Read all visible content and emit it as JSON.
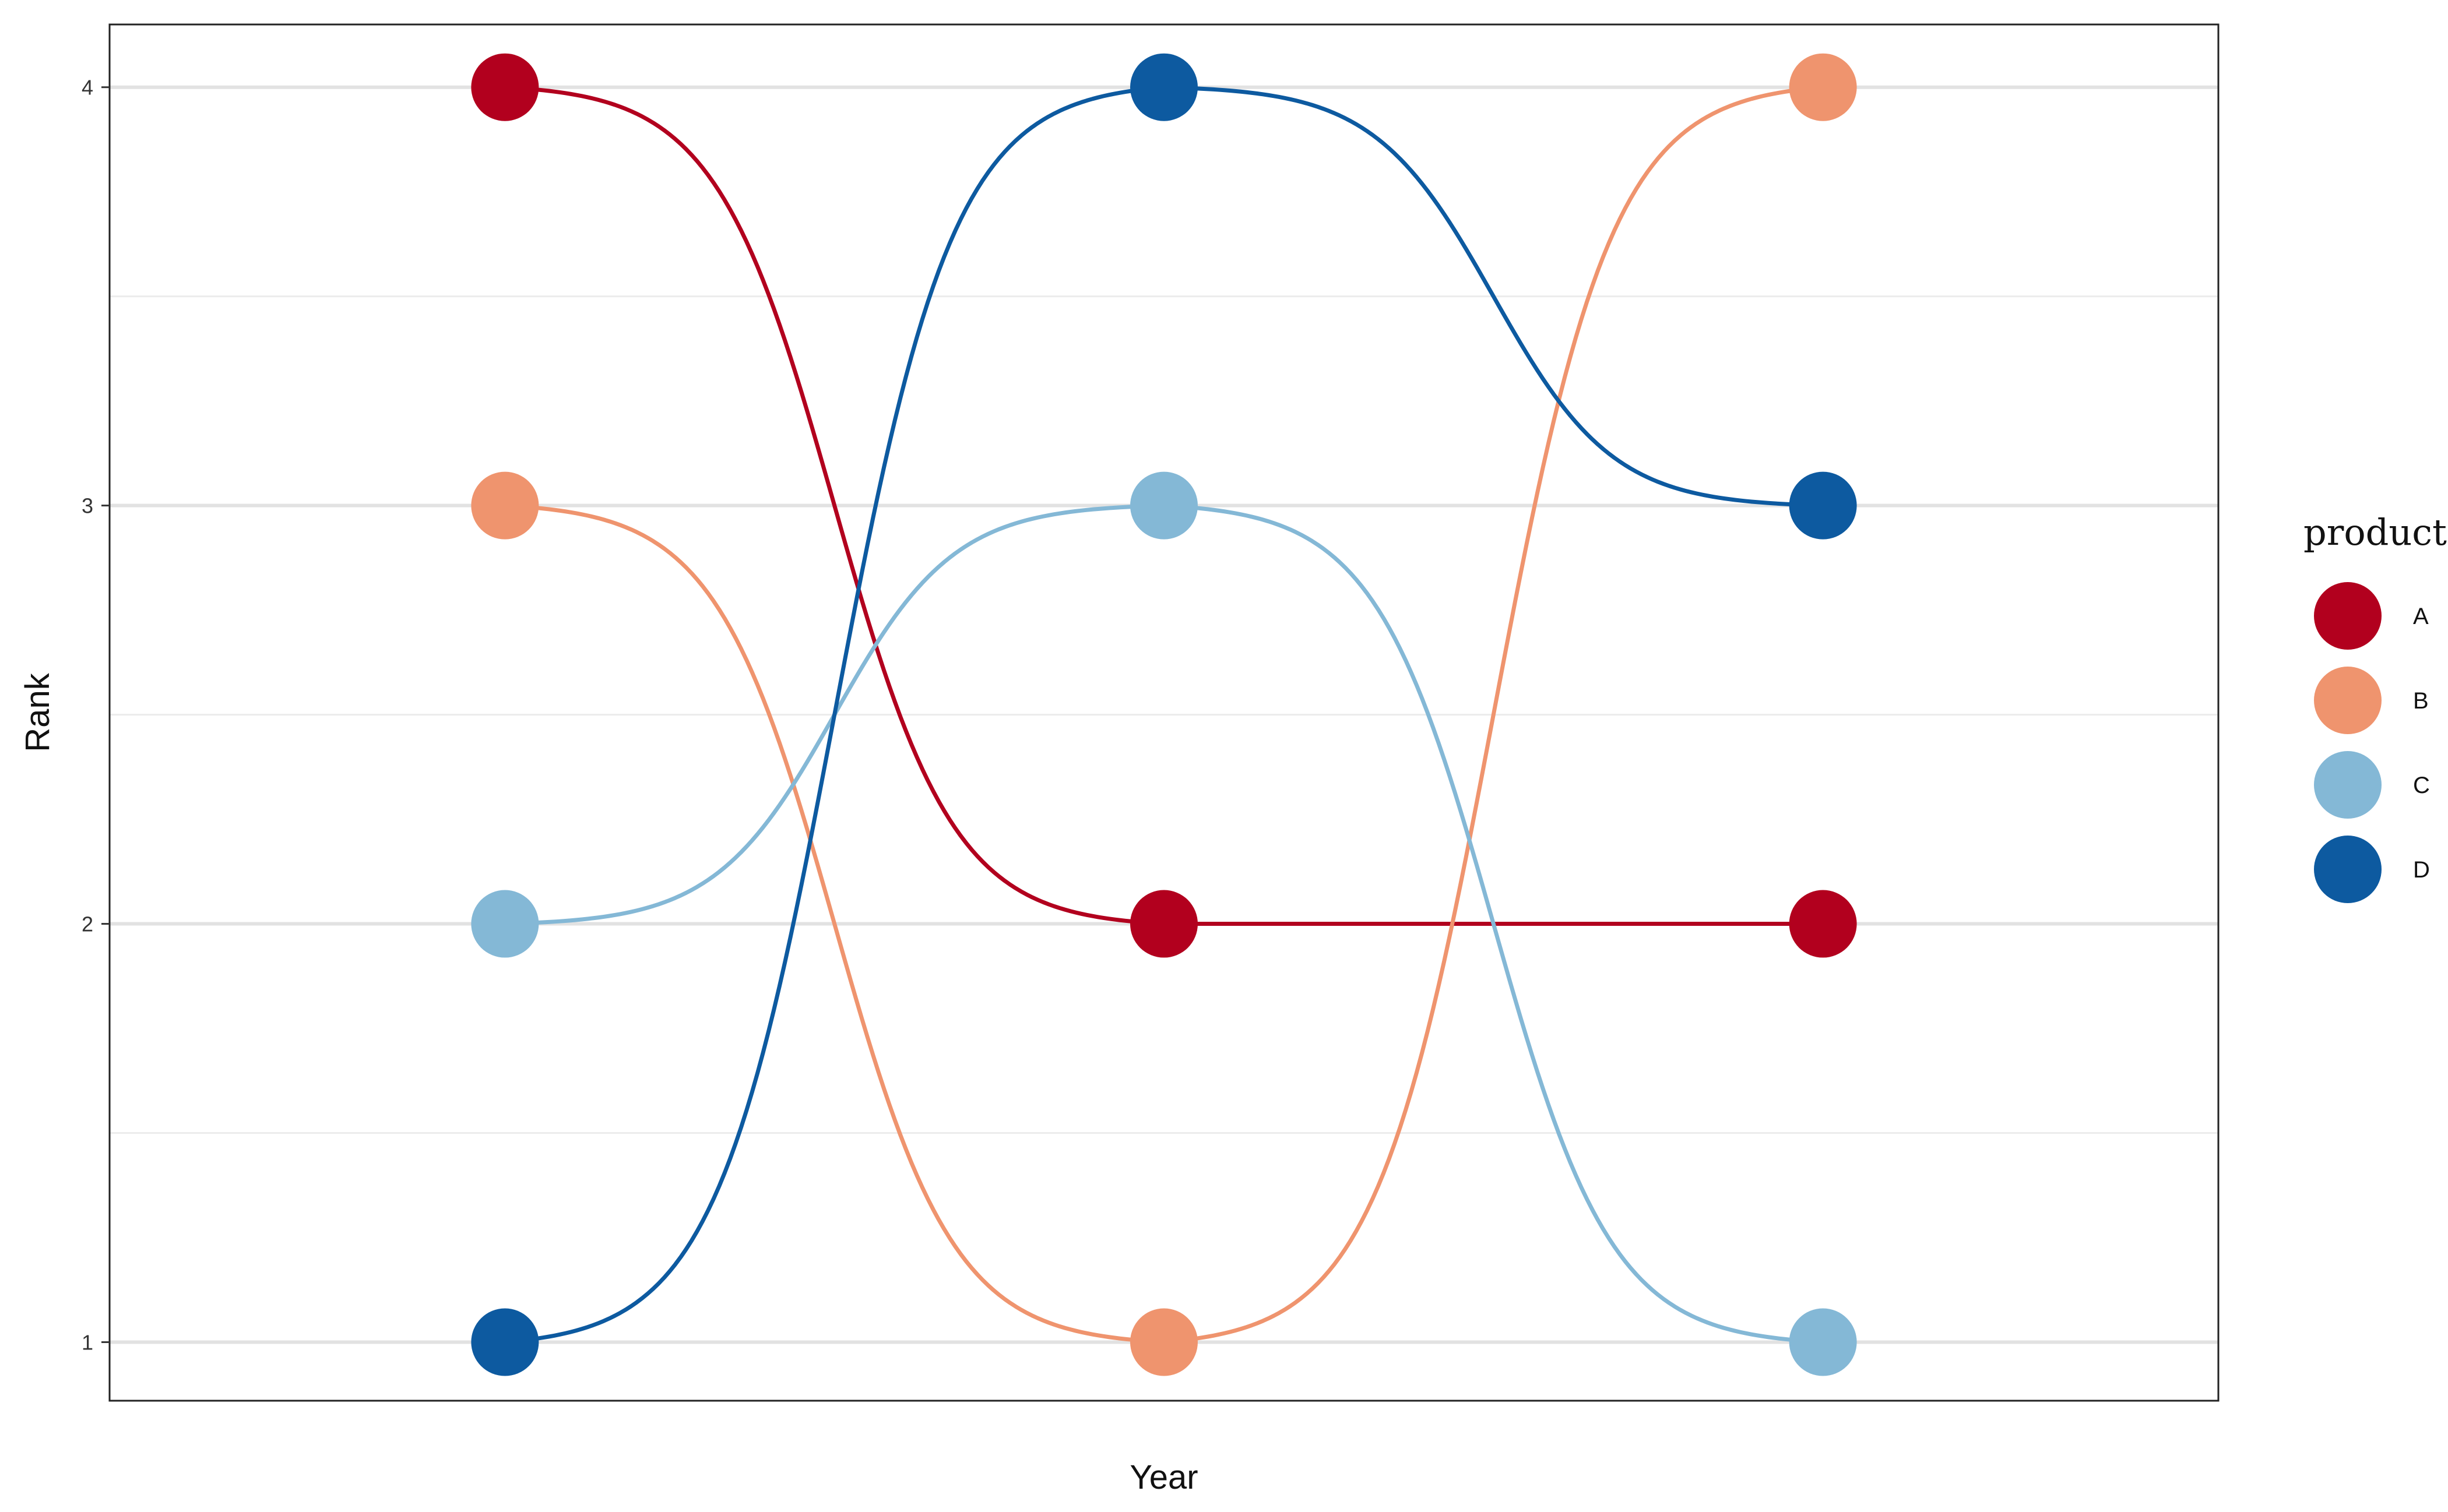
{
  "chart_data": {
    "type": "line",
    "subtype": "bump",
    "xlabel": "Year",
    "ylabel": "Rank",
    "x_ticks_shown": false,
    "x": [
      1,
      2,
      3
    ],
    "xlim": [
      0.4,
      3.6
    ],
    "ylim": [
      0.86,
      4.15
    ],
    "y_ticks": [
      1,
      2,
      3,
      4
    ],
    "grid": "horizontal",
    "legend": {
      "title": "product",
      "position": "right"
    },
    "series": [
      {
        "name": "A",
        "color": "#b2001e",
        "values": [
          4,
          2,
          2
        ]
      },
      {
        "name": "B",
        "color": "#ef946e",
        "values": [
          3,
          1,
          4
        ]
      },
      {
        "name": "C",
        "color": "#84b8d6",
        "values": [
          2,
          3,
          1
        ]
      },
      {
        "name": "D",
        "color": "#0d5aa0",
        "values": [
          1,
          4,
          3
        ]
      }
    ]
  }
}
